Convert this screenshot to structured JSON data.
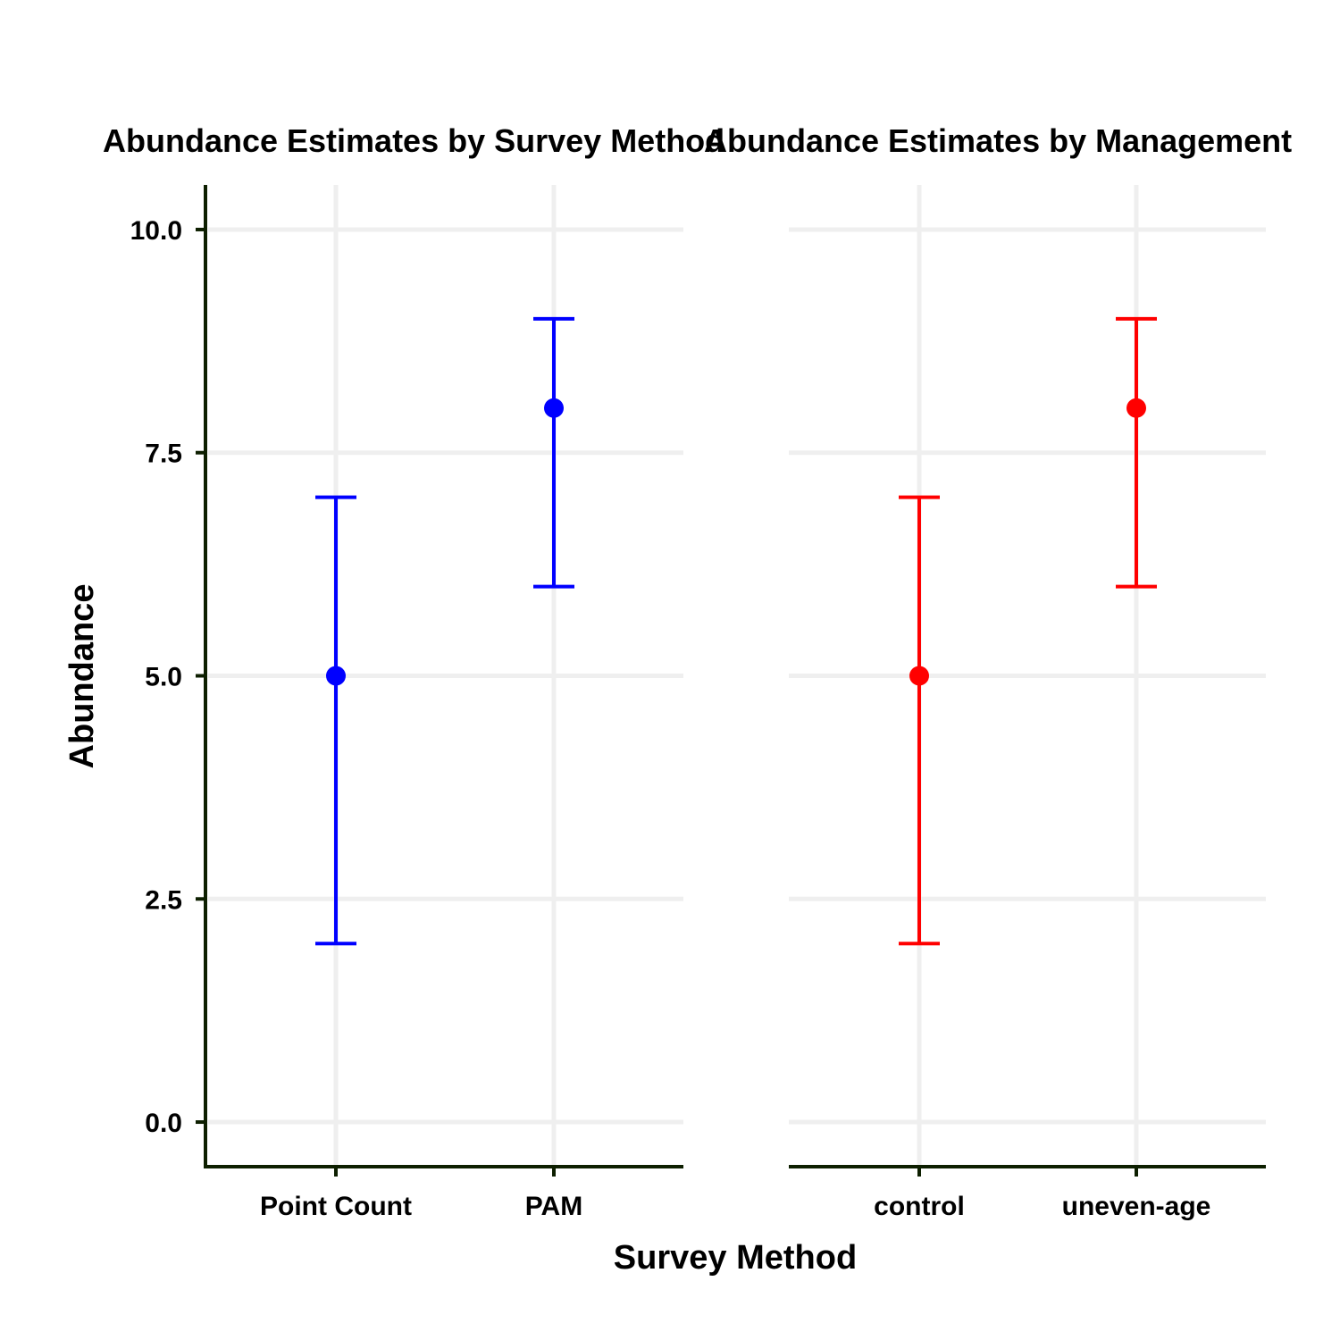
{
  "chart_data": [
    {
      "type": "scatter",
      "title": "Abundance Estimates by Survey Method",
      "xlabel": "Survey Method",
      "ylabel": "Abundance",
      "categories": [
        "Point Count",
        "PAM"
      ],
      "ylim": [
        -0.5,
        10.5
      ],
      "yticks": [
        "0.0",
        "2.5",
        "5.0",
        "7.5",
        "10.0"
      ],
      "color": "#0000ff",
      "grid": true,
      "points": [
        {
          "category": "Point Count",
          "estimate": 5,
          "lower": 2,
          "upper": 7
        },
        {
          "category": "PAM",
          "estimate": 8,
          "lower": 6,
          "upper": 9
        }
      ]
    },
    {
      "type": "scatter",
      "title": "Abundance Estimates by Management",
      "xlabel": "",
      "ylabel": "",
      "categories": [
        "control",
        "uneven-age"
      ],
      "ylim": [
        -0.5,
        10.5
      ],
      "color": "#ff0000",
      "grid": true,
      "points": [
        {
          "category": "control",
          "estimate": 5,
          "lower": 2,
          "upper": 7
        },
        {
          "category": "uneven-age",
          "estimate": 8,
          "lower": 6,
          "upper": 9
        }
      ]
    }
  ],
  "colors": {
    "axis": "#0d1f00",
    "grid": "#efefef"
  }
}
